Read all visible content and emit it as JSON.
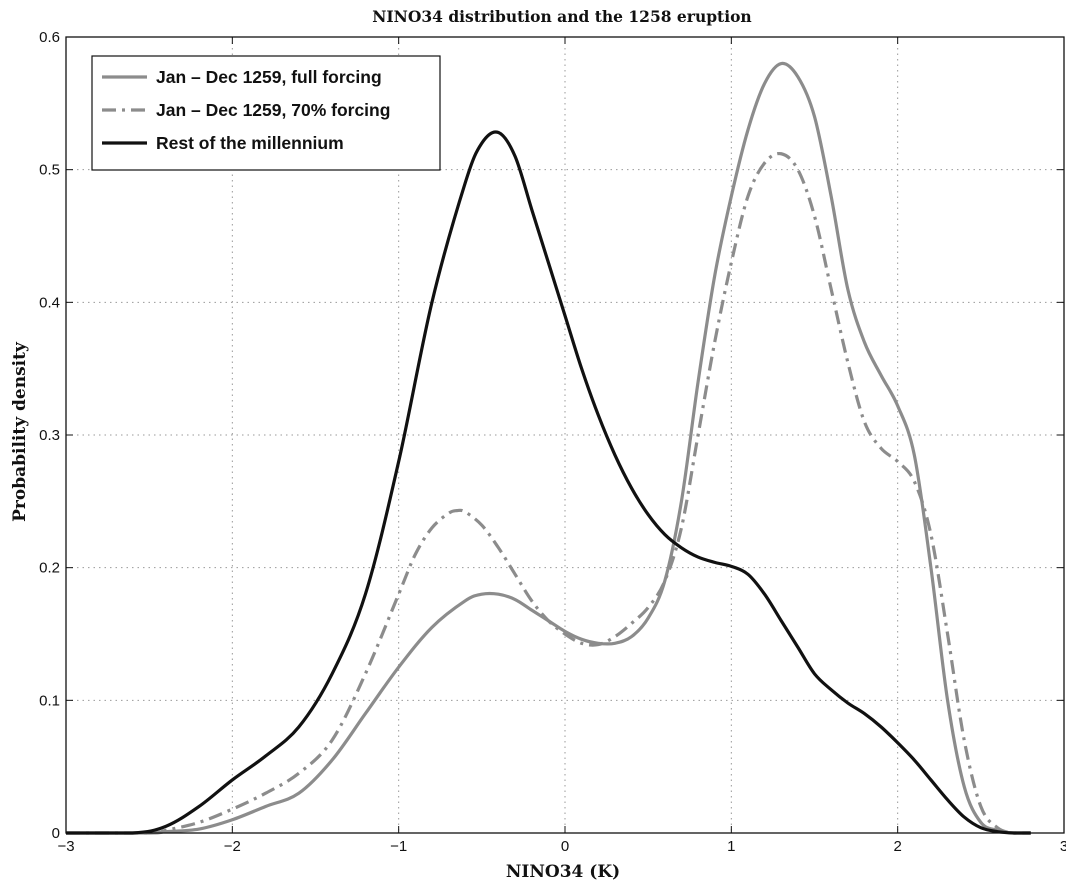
{
  "chart_data": {
    "type": "line",
    "title": "NINO34 distribution and the 1258 eruption",
    "xlabel": "NINO34 (K)",
    "ylabel": "Probability density",
    "xlim": [
      -3,
      3
    ],
    "ylim": [
      0,
      0.6
    ],
    "xticks": [
      -3,
      -2,
      -1,
      0,
      1,
      2,
      3
    ],
    "xtick_labels": [
      "−3",
      "−2",
      "−1",
      "0",
      "1",
      "2",
      "3"
    ],
    "yticks": [
      0,
      0.1,
      0.2,
      0.3,
      0.4,
      0.5,
      0.6
    ],
    "ytick_labels": [
      "0",
      "0.1",
      "0.2",
      "0.3",
      "0.4",
      "0.5",
      "0.6"
    ],
    "grid": true,
    "legend_position": "top-left",
    "series": [
      {
        "name": "Jan – Dec 1259, full forcing",
        "color": "#8c8c8c",
        "style": "solid",
        "x": [
          -3.0,
          -2.5,
          -2.4,
          -2.2,
          -2.0,
          -1.8,
          -1.6,
          -1.4,
          -1.2,
          -1.0,
          -0.8,
          -0.6,
          -0.5,
          -0.4,
          -0.3,
          -0.2,
          -0.1,
          0.0,
          0.1,
          0.2,
          0.3,
          0.4,
          0.5,
          0.6,
          0.7,
          0.8,
          0.9,
          1.0,
          1.1,
          1.2,
          1.3,
          1.4,
          1.5,
          1.6,
          1.7,
          1.8,
          1.9,
          2.0,
          2.1,
          2.2,
          2.3,
          2.4,
          2.5,
          2.6,
          2.7,
          2.8
        ],
        "y": [
          0.0,
          0.0,
          0.001,
          0.003,
          0.01,
          0.02,
          0.03,
          0.055,
          0.09,
          0.125,
          0.155,
          0.175,
          0.18,
          0.18,
          0.176,
          0.168,
          0.16,
          0.152,
          0.146,
          0.143,
          0.143,
          0.148,
          0.162,
          0.19,
          0.25,
          0.34,
          0.42,
          0.48,
          0.53,
          0.565,
          0.58,
          0.57,
          0.54,
          0.48,
          0.41,
          0.37,
          0.345,
          0.322,
          0.285,
          0.2,
          0.1,
          0.035,
          0.008,
          0.002,
          0.0,
          0.0
        ]
      },
      {
        "name": "Jan – Dec 1259, 70% forcing",
        "color": "#8c8c8c",
        "style": "dashdot",
        "x": [
          -3.0,
          -2.5,
          -2.4,
          -2.2,
          -2.0,
          -1.8,
          -1.6,
          -1.4,
          -1.2,
          -1.0,
          -0.9,
          -0.8,
          -0.7,
          -0.65,
          -0.6,
          -0.5,
          -0.4,
          -0.3,
          -0.2,
          -0.1,
          0.0,
          0.1,
          0.2,
          0.3,
          0.4,
          0.5,
          0.6,
          0.7,
          0.8,
          0.9,
          1.0,
          1.1,
          1.2,
          1.3,
          1.4,
          1.5,
          1.6,
          1.7,
          1.8,
          1.9,
          2.0,
          2.1,
          2.2,
          2.3,
          2.4,
          2.5,
          2.6,
          2.7,
          2.8
        ],
        "y": [
          0.0,
          0.0,
          0.002,
          0.008,
          0.018,
          0.03,
          0.045,
          0.07,
          0.12,
          0.18,
          0.21,
          0.23,
          0.241,
          0.243,
          0.242,
          0.232,
          0.215,
          0.195,
          0.175,
          0.16,
          0.15,
          0.143,
          0.142,
          0.148,
          0.158,
          0.17,
          0.19,
          0.23,
          0.3,
          0.37,
          0.43,
          0.48,
          0.505,
          0.512,
          0.5,
          0.465,
          0.41,
          0.355,
          0.31,
          0.29,
          0.28,
          0.265,
          0.225,
          0.15,
          0.07,
          0.02,
          0.004,
          0.0,
          0.0
        ]
      },
      {
        "name": "Rest of the millennium",
        "color": "#111111",
        "style": "solid",
        "x": [
          -3.0,
          -2.6,
          -2.4,
          -2.2,
          -2.0,
          -1.8,
          -1.6,
          -1.4,
          -1.2,
          -1.0,
          -0.8,
          -0.6,
          -0.5,
          -0.4,
          -0.3,
          -0.2,
          -0.1,
          0.0,
          0.1,
          0.2,
          0.3,
          0.4,
          0.5,
          0.6,
          0.7,
          0.8,
          0.9,
          1.0,
          1.1,
          1.2,
          1.3,
          1.4,
          1.5,
          1.6,
          1.7,
          1.8,
          1.9,
          2.0,
          2.1,
          2.2,
          2.3,
          2.4,
          2.5,
          2.6,
          2.7,
          2.8
        ],
        "y": [
          0.0,
          0.0,
          0.005,
          0.02,
          0.04,
          0.058,
          0.08,
          0.12,
          0.18,
          0.28,
          0.4,
          0.49,
          0.52,
          0.528,
          0.51,
          0.47,
          0.43,
          0.39,
          0.35,
          0.315,
          0.285,
          0.26,
          0.24,
          0.225,
          0.215,
          0.208,
          0.204,
          0.201,
          0.195,
          0.18,
          0.16,
          0.14,
          0.12,
          0.108,
          0.098,
          0.09,
          0.08,
          0.068,
          0.055,
          0.04,
          0.025,
          0.012,
          0.004,
          0.001,
          0.0,
          0.0
        ]
      }
    ]
  }
}
